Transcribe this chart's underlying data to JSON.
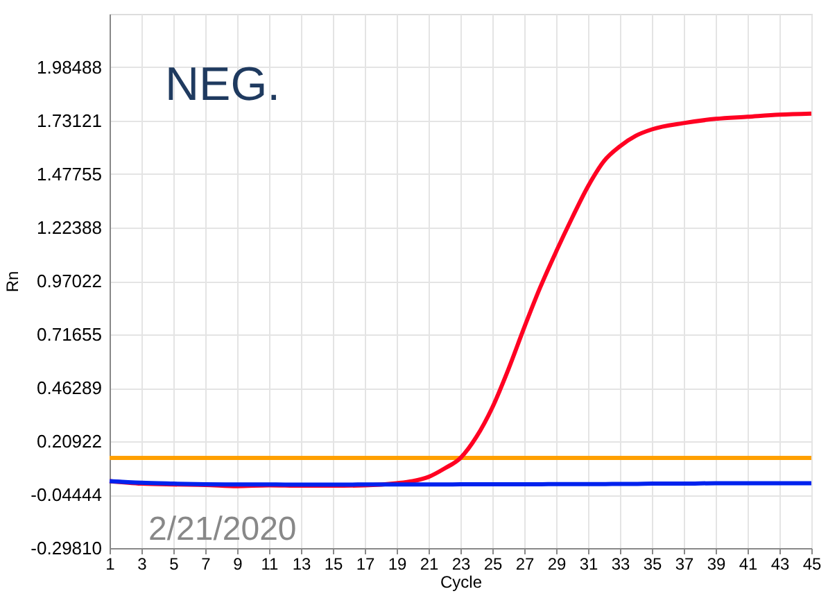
{
  "chart_data": {
    "type": "line",
    "xlabel": "Cycle",
    "ylabel": "Rn",
    "x": [
      1,
      3,
      5,
      7,
      9,
      11,
      13,
      15,
      17,
      19,
      20,
      21,
      22,
      23,
      24,
      25,
      26,
      27,
      28,
      29,
      30,
      31,
      32,
      33,
      34,
      35,
      37,
      39,
      41,
      43,
      45
    ],
    "series": [
      {
        "color": "#ff0022",
        "values": [
          0.02,
          0.008,
          0.004,
          0.002,
          -0.004,
          0.0,
          -0.002,
          -0.002,
          0.0,
          0.01,
          0.02,
          0.04,
          0.08,
          0.13,
          0.23,
          0.37,
          0.55,
          0.75,
          0.94,
          1.11,
          1.27,
          1.42,
          1.54,
          1.61,
          1.66,
          1.69,
          1.72,
          1.74,
          1.75,
          1.76,
          1.765
        ]
      },
      {
        "color": "#0022ee",
        "values": [
          0.02,
          0.012,
          0.008,
          0.005,
          0.004,
          0.004,
          0.003,
          0.003,
          0.004,
          0.004,
          0.004,
          0.004,
          0.004,
          0.005,
          0.005,
          0.005,
          0.005,
          0.005,
          0.005,
          0.006,
          0.006,
          0.006,
          0.006,
          0.007,
          0.007,
          0.008,
          0.008,
          0.01,
          0.01,
          0.01,
          0.01
        ]
      }
    ],
    "ref_lines": [
      {
        "axis": "y",
        "value": 0.13,
        "color": "#ffa000"
      }
    ],
    "xlim": [
      1,
      45
    ],
    "xticks": [
      1,
      3,
      5,
      7,
      9,
      11,
      13,
      15,
      17,
      19,
      21,
      23,
      25,
      27,
      29,
      31,
      33,
      35,
      37,
      39,
      41,
      43,
      45
    ],
    "ylim": [
      -0.2981,
      2.23854
    ],
    "yticks": [
      {
        "value": -0.2981,
        "label": "-0.29810"
      },
      {
        "value": -0.04444,
        "label": "-0.04444"
      },
      {
        "value": 0.20922,
        "label": "0.20922"
      },
      {
        "value": 0.46289,
        "label": "0.46289"
      },
      {
        "value": 0.71655,
        "label": "0.71655"
      },
      {
        "value": 0.97022,
        "label": "0.97022"
      },
      {
        "value": 1.22388,
        "label": "1.22388"
      },
      {
        "value": 1.47755,
        "label": "1.47755"
      },
      {
        "value": 1.73121,
        "label": "1.73121"
      },
      {
        "value": 1.98488,
        "label": "1.98488"
      }
    ],
    "grid": true,
    "annotations": [
      "NEG.",
      "2/21/2020"
    ]
  }
}
